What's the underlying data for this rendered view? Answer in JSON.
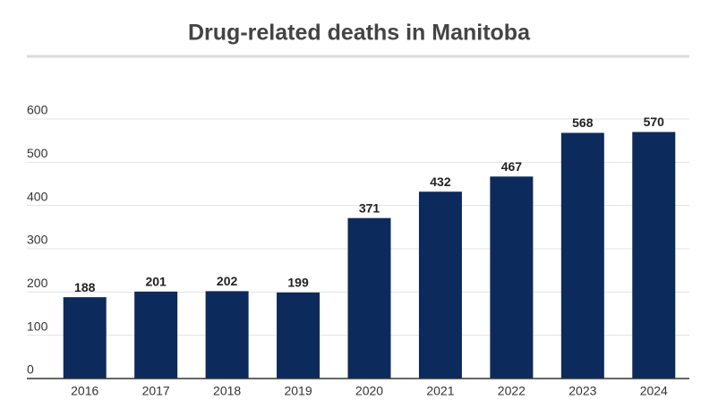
{
  "chart_data": {
    "type": "bar",
    "title": "Drug-related deaths in Manitoba",
    "categories": [
      "2016",
      "2017",
      "2018",
      "2019",
      "2020",
      "2021",
      "2022",
      "2023",
      "2024"
    ],
    "values": [
      188,
      201,
      202,
      199,
      371,
      432,
      467,
      568,
      570
    ],
    "color": "#0c2a5b",
    "ylim": [
      0,
      600
    ],
    "yticks": [
      0,
      100,
      200,
      300,
      400,
      500,
      600
    ],
    "grid": true
  }
}
